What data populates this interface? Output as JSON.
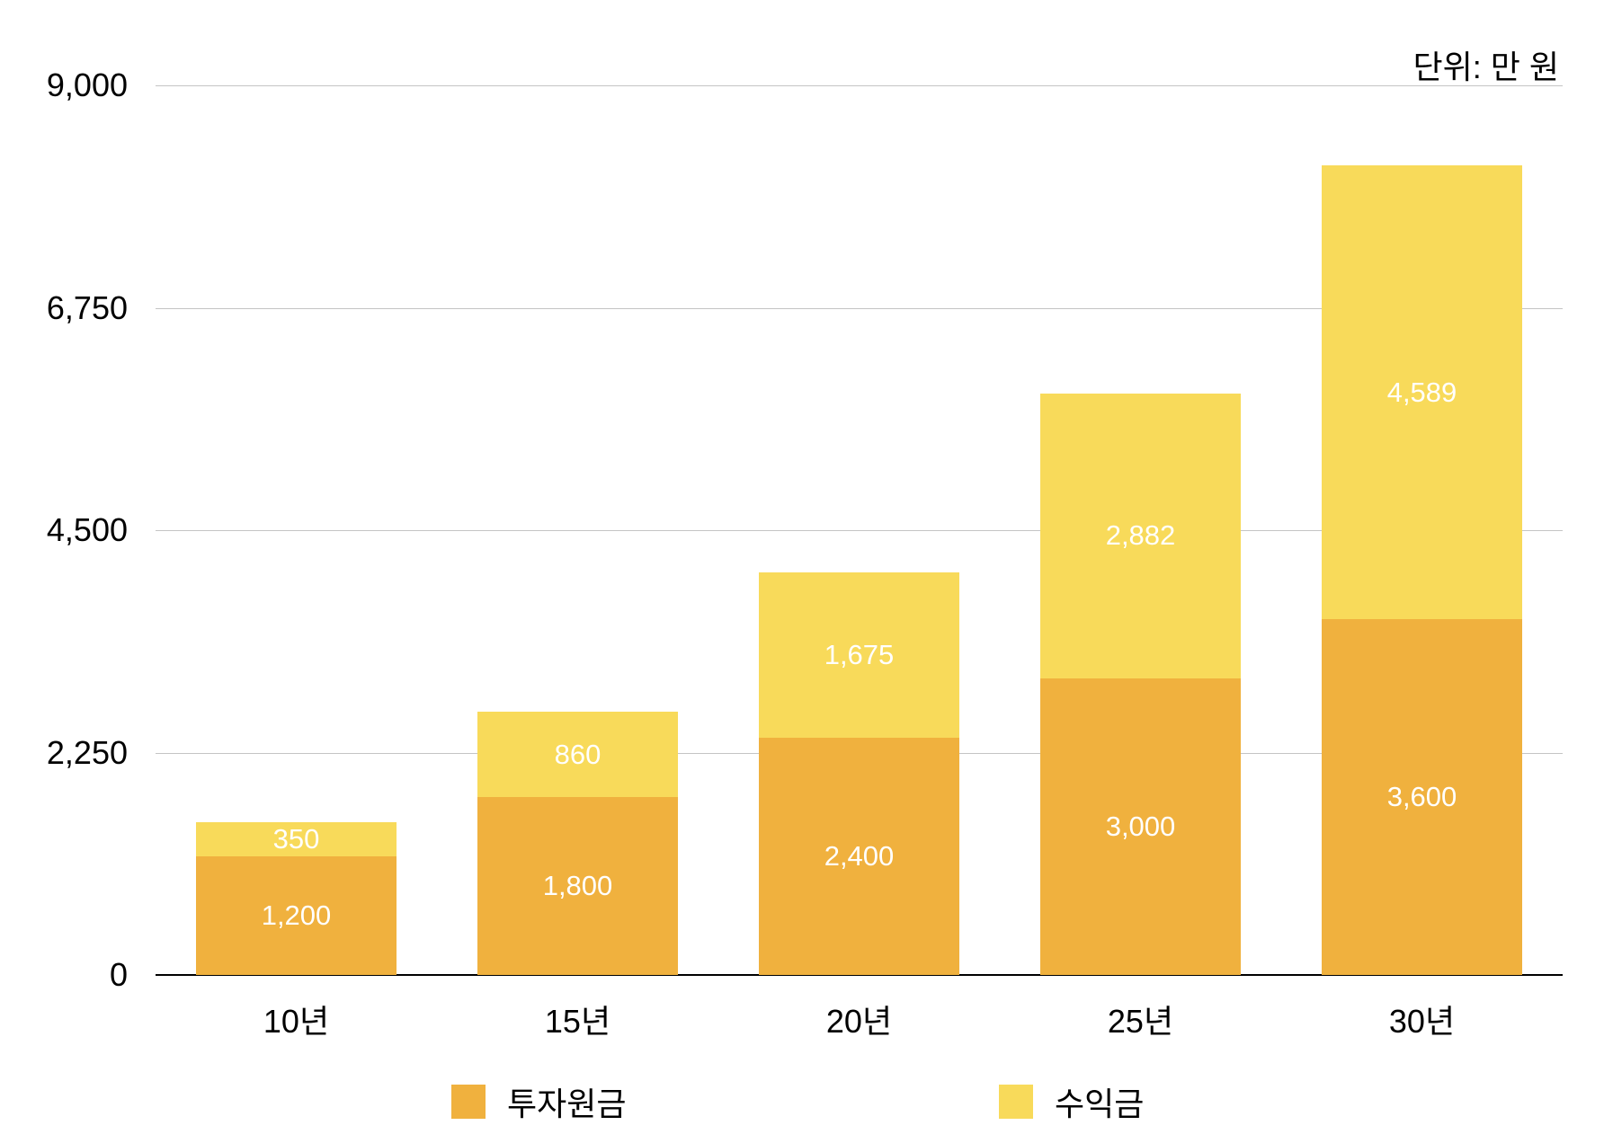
{
  "unit_label": "단위: 만 원",
  "colors": {
    "principal": "#F0B13E",
    "profit": "#F8DA5A",
    "grid": "#C4C4C4"
  },
  "legend": [
    {
      "label": "투자원금",
      "color": "#F0B13E"
    },
    {
      "label": "수익금",
      "color": "#F8DA5A"
    }
  ],
  "y_ticks": [
    "0",
    "2,250",
    "4,500",
    "6,750",
    "9,000"
  ],
  "chart_data": {
    "type": "bar",
    "stacked": true,
    "title": "",
    "subtitle": "단위: 만 원",
    "xlabel": "",
    "ylabel": "",
    "categories": [
      "10년",
      "15년",
      "20년",
      "25년",
      "30년"
    ],
    "series": [
      {
        "name": "투자원금",
        "values": [
          1200,
          1800,
          2400,
          3000,
          3600
        ],
        "labels": [
          "1,200",
          "1,800",
          "2,400",
          "3,000",
          "3,600"
        ]
      },
      {
        "name": "수익금",
        "values": [
          350,
          860,
          1675,
          2882,
          4589
        ],
        "labels": [
          "350",
          "860",
          "1,675",
          "2,882",
          "4,589"
        ]
      }
    ],
    "ylim": [
      0,
      9000
    ],
    "yticks": [
      0,
      2250,
      4500,
      6750,
      9000
    ],
    "grid": true,
    "legend_position": "bottom"
  }
}
